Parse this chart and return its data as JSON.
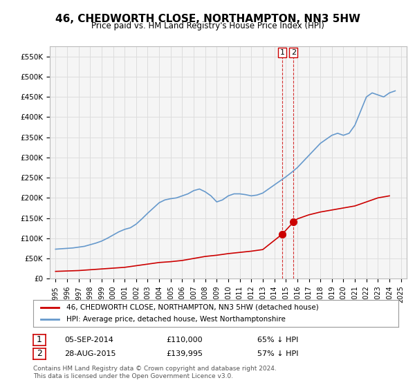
{
  "title": "46, CHEDWORTH CLOSE, NORTHAMPTON, NN3 5HW",
  "subtitle": "Price paid vs. HM Land Registry's House Price Index (HPI)",
  "legend_line1": "46, CHEDWORTH CLOSE, NORTHAMPTON, NN3 5HW (detached house)",
  "legend_line2": "HPI: Average price, detached house, West Northamptonshire",
  "footnote": "Contains HM Land Registry data © Crown copyright and database right 2024.\nThis data is licensed under the Open Government Licence v3.0.",
  "annotation1_label": "1",
  "annotation1_date": "05-SEP-2014",
  "annotation1_price": "£110,000",
  "annotation1_pct": "65% ↓ HPI",
  "annotation2_label": "2",
  "annotation2_date": "28-AUG-2015",
  "annotation2_price": "£139,995",
  "annotation2_pct": "57% ↓ HPI",
  "red_line_color": "#cc0000",
  "blue_line_color": "#6699cc",
  "annotation_vline_color": "#cc0000",
  "grid_color": "#dddddd",
  "background_color": "#ffffff",
  "plot_bg_color": "#f5f5f5",
  "ylim": [
    0,
    575000
  ],
  "yticks": [
    0,
    50000,
    100000,
    150000,
    200000,
    250000,
    300000,
    350000,
    400000,
    450000,
    500000,
    550000
  ],
  "ytick_labels": [
    "£0",
    "£50K",
    "£100K",
    "£150K",
    "£200K",
    "£250K",
    "£300K",
    "£350K",
    "£400K",
    "£450K",
    "£500K",
    "£550K"
  ],
  "hpi_years": [
    1995,
    1995.5,
    1996,
    1996.5,
    1997,
    1997.5,
    1998,
    1998.5,
    1999,
    1999.5,
    2000,
    2000.5,
    2001,
    2001.5,
    2002,
    2002.5,
    2003,
    2003.5,
    2004,
    2004.5,
    2005,
    2005.5,
    2006,
    2006.5,
    2007,
    2007.5,
    2008,
    2008.5,
    2009,
    2009.5,
    2010,
    2010.5,
    2011,
    2011.5,
    2012,
    2012.5,
    2013,
    2013.5,
    2014,
    2014.5,
    2015,
    2015.5,
    2016,
    2016.5,
    2017,
    2017.5,
    2018,
    2018.5,
    2019,
    2019.5,
    2020,
    2020.5,
    2021,
    2021.5,
    2022,
    2022.5,
    2023,
    2023.5,
    2024,
    2024.5
  ],
  "hpi_values": [
    73000,
    74000,
    75000,
    76000,
    78000,
    80000,
    84000,
    88000,
    93000,
    100000,
    108000,
    116000,
    122000,
    126000,
    135000,
    148000,
    162000,
    175000,
    188000,
    195000,
    198000,
    200000,
    205000,
    210000,
    218000,
    222000,
    215000,
    205000,
    190000,
    195000,
    205000,
    210000,
    210000,
    208000,
    205000,
    207000,
    212000,
    222000,
    232000,
    242000,
    252000,
    263000,
    275000,
    290000,
    305000,
    320000,
    335000,
    345000,
    355000,
    360000,
    355000,
    360000,
    380000,
    415000,
    450000,
    460000,
    455000,
    450000,
    460000,
    465000
  ],
  "red_years": [
    1995,
    1996,
    1997,
    1998,
    1999,
    2000,
    2001,
    2002,
    2003,
    2004,
    2005,
    2006,
    2007,
    2008,
    2009,
    2010,
    2011,
    2012,
    2013,
    2014.68,
    2015.66,
    2016,
    2017,
    2018,
    2019,
    2020,
    2021,
    2022,
    2023,
    2024
  ],
  "red_values": [
    18000,
    19000,
    20000,
    22000,
    24000,
    26000,
    28000,
    32000,
    36000,
    40000,
    42000,
    45000,
    50000,
    55000,
    58000,
    62000,
    65000,
    68000,
    72000,
    110000,
    139995,
    148000,
    158000,
    165000,
    170000,
    175000,
    180000,
    190000,
    200000,
    205000
  ],
  "vline1_x": 2014.68,
  "vline2_x": 2015.66,
  "marker1_y": 110000,
  "marker2_y": 139995,
  "xticks": [
    1995,
    1996,
    1997,
    1998,
    1999,
    2000,
    2001,
    2002,
    2003,
    2004,
    2005,
    2006,
    2007,
    2008,
    2009,
    2010,
    2011,
    2012,
    2013,
    2014,
    2015,
    2016,
    2017,
    2018,
    2019,
    2020,
    2021,
    2022,
    2023,
    2024,
    2025
  ],
  "xlim": [
    1994.5,
    2025.5
  ]
}
